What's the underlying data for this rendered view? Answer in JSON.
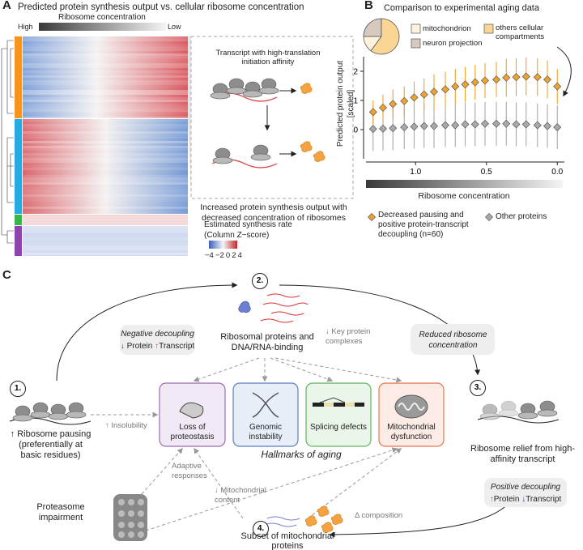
{
  "panel_a": {
    "label": "A",
    "title": "Predicted protein synthesis output vs. cellular ribosome concentration",
    "gradient_high": "High",
    "gradient_title": "Ribosome concentration",
    "gradient_low": "Low",
    "inset_top": "Transcript with high-translation initiation affinity",
    "inset_bottom": "Increased protein synthesis output with decreased concentration of ribosomes",
    "colorbar_title": "Estimated synthesis rate (Column Z−score)",
    "colorbar_labels": [
      "−4",
      "−2",
      "0",
      "2",
      "4"
    ]
  },
  "panel_b": {
    "label": "B"
  },
  "chart_data": [
    {
      "type": "scatter",
      "title": "Comparison to experimental aging data",
      "x_label": "Ribosome concentration",
      "y_label": "Predicted protein output [scaled]",
      "x": [
        1.3,
        1.23,
        1.16,
        1.08,
        1.01,
        0.94,
        0.87,
        0.79,
        0.72,
        0.65,
        0.58,
        0.51,
        0.43,
        0.36,
        0.29,
        0.22,
        0.14,
        0.07,
        0.0
      ],
      "xlim": [
        1.35,
        -0.05
      ],
      "xticks": [
        {
          "value": 1,
          "label": "1.0"
        },
        0.5,
        {
          "value": 0,
          "label": "0.0"
        }
      ],
      "ylim": [
        -1,
        2.5
      ],
      "yticks": [
        0,
        1,
        2
      ],
      "series": [
        {
          "name": "Decreased pausing and positive protein-transcript decoupling (n=60)",
          "color": "#f0a22e",
          "marker": "diamond",
          "values": [
            0.6,
            0.75,
            0.88,
            0.98,
            1.1,
            1.2,
            1.3,
            1.38,
            1.48,
            1.55,
            1.62,
            1.68,
            1.72,
            1.78,
            1.8,
            1.82,
            1.8,
            1.72,
            1.48
          ],
          "errors": [
            0.4,
            0.45,
            0.5,
            0.5,
            0.55,
            0.55,
            0.6,
            0.6,
            0.6,
            0.6,
            0.6,
            0.6,
            0.6,
            0.65,
            0.65,
            0.65,
            0.65,
            0.65,
            0.6
          ]
        },
        {
          "name": "Other proteins",
          "color": "#a9a9a9",
          "marker": "diamond",
          "values": [
            0.02,
            0.03,
            0.05,
            0.08,
            0.1,
            0.12,
            0.12,
            0.15,
            0.15,
            0.18,
            0.18,
            0.2,
            0.2,
            0.2,
            0.18,
            0.18,
            0.15,
            0.12,
            0.08
          ],
          "errors": [
            0.75,
            0.75,
            0.75,
            0.75,
            0.75,
            0.75,
            0.75,
            0.75,
            0.75,
            0.75,
            0.75,
            0.75,
            0.75,
            0.75,
            0.75,
            0.75,
            0.75,
            0.75,
            0.75
          ]
        }
      ]
    },
    {
      "type": "pie",
      "categories": [
        "mitochondrion",
        "neuron projection",
        "others cellular compartments"
      ],
      "values": [
        15,
        25,
        60
      ],
      "colors": [
        "#fdf2dc",
        "#d7c9bd",
        "#fad594"
      ]
    }
  ],
  "panel_c": {
    "label": "C",
    "steps": [
      {
        "number": "1.",
        "text": "↑ Ribosome pausing",
        "note": "(preferentially at basic residues)"
      },
      {
        "number": "2.",
        "text": "Ribosomal proteins and DNA/RNA-binding"
      },
      {
        "number": "3.",
        "text": "Ribosome relief from high-affinity transcript"
      },
      {
        "number": "4.",
        "text": "Subset of mitochondrial proteins"
      }
    ],
    "boxes": [
      {
        "title": "Negative decoupling",
        "protein_arrow": "↓",
        "protein": "Protein",
        "transcript_arrow": "↑",
        "transcript": "Transcript"
      },
      {
        "title": "Reduced ribosome concentration"
      },
      {
        "title": "Positive decoupling",
        "protein_arrow": "↑",
        "protein": "Protein",
        "transcript_arrow": "↓",
        "transcript": "Transcript"
      }
    ],
    "hallmarks": [
      "Loss of proteostasis",
      "Genomic instability",
      "Splicing defects",
      "Mitochondrial dysfunction"
    ],
    "hallmarks_title": "Hallmarks of aging",
    "annotations": [
      "↓ Key protein complexes",
      "↑ Insolubility",
      "Adaptive responses",
      "↓ Mitochondrial content",
      "Δ composition"
    ],
    "proteasome": "Proteasome impairment"
  }
}
